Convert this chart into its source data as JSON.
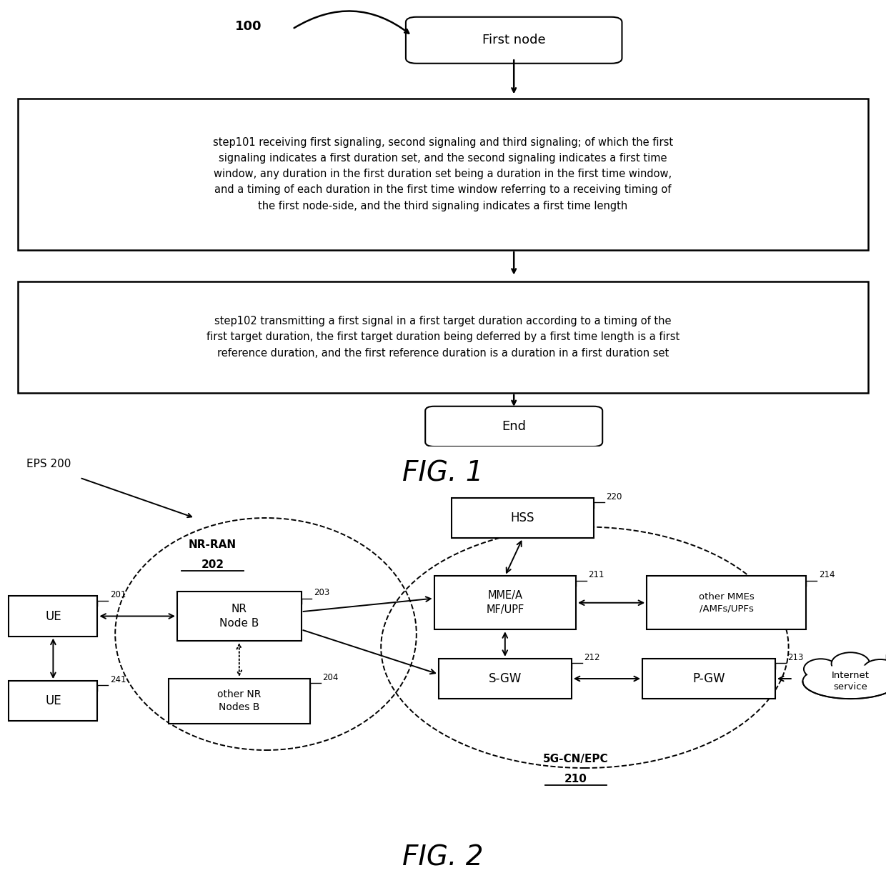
{
  "fig1": {
    "title": "FIG. 1",
    "label": "100",
    "start_node": "First node",
    "end_node": "End",
    "step1_text": "step101 receiving first signaling, second signaling and third signaling; of which the first\nsignaling indicates a first duration set, and the second signaling indicates a first time\nwindow, any duration in the first duration set being a duration in the first time window,\nand a timing of each duration in the first time window referring to a receiving timing of\nthe first node-side, and the third signaling indicates a first time length",
    "step2_text": "step102 transmitting a first signal in a first target duration according to a timing of the\nfirst target duration, the first target duration being deferred by a first time length is a first\nreference duration, and the first reference duration is a duration in a first duration set"
  },
  "fig2": {
    "title": "FIG. 2",
    "eps_label": "EPS 200",
    "nrran_label": "NR-RAN",
    "nrran_num": "202",
    "cn_label": "5G-CN/EPC",
    "cn_num": "210"
  },
  "bg_color": "#ffffff"
}
